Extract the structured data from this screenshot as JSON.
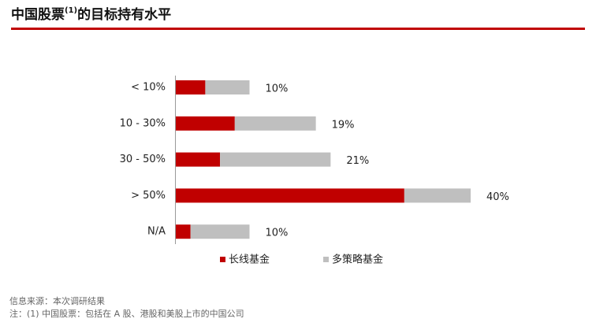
{
  "chart_data": {
    "type": "stacked_barh",
    "title": [
      "中国股票",
      "(1)",
      "的目标持有水平"
    ],
    "categories": [
      "< 10%",
      "10 - 30%",
      "30 - 50%",
      "> 50%",
      "N/A"
    ],
    "series": [
      {
        "name": "长线基金",
        "color": "#c00000",
        "values": [
          4,
          8,
          6,
          31,
          2
        ]
      },
      {
        "name": "多策略基金",
        "color": "#bfbfbf",
        "values": [
          6,
          11,
          15,
          9,
          8
        ]
      }
    ],
    "totals": [
      10,
      19,
      21,
      40,
      10
    ],
    "total_labels": [
      "10%",
      "19%",
      "21%",
      "40%",
      "10%"
    ],
    "xlim": [
      0,
      40
    ],
    "legend": "bottom",
    "notes": [
      "信息来源：本次调研结果",
      "注：(1) 中国股票：包括在 A 股、港股和美股上市的中国公司"
    ]
  }
}
